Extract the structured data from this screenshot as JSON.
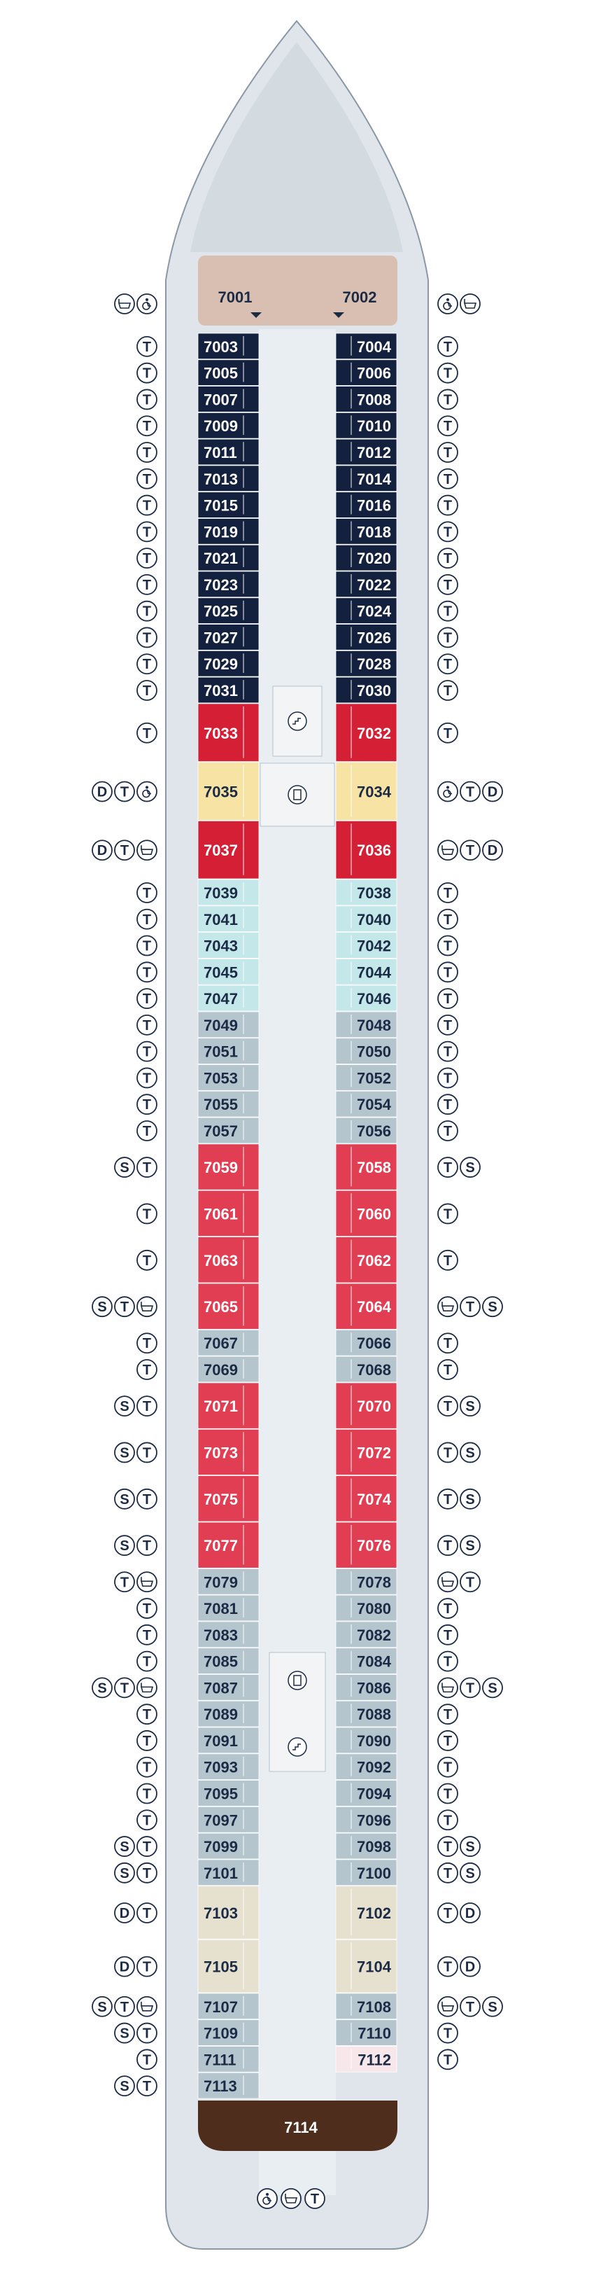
{
  "colors": {
    "hull": "#d5dde3",
    "hull_stroke": "#8a98a6",
    "corridor": "#e9eef2",
    "navy": "#13213f",
    "red": "#d51f35",
    "pink": "#e23e53",
    "yellow": "#f7e3a3",
    "aqua": "#c4e7ea",
    "gray": "#b5c5ce",
    "beige": "#e6e0cf",
    "rose": "#f6dede",
    "tan": "#d9bfb1",
    "brown": "#4e2d1c",
    "lightpink": "#f7e7ea"
  },
  "legend_icons": {
    "T": "twin-beds-icon",
    "D": "double-bed-icon",
    "S": "sofa-bed-icon",
    "bath": "bathtub-icon",
    "access": "accessible-icon"
  },
  "cabins_left": [
    {
      "num": "7003",
      "color": "navy"
    },
    {
      "num": "7005",
      "color": "navy"
    },
    {
      "num": "7007",
      "color": "navy"
    },
    {
      "num": "7009",
      "color": "navy"
    },
    {
      "num": "7011",
      "color": "navy"
    },
    {
      "num": "7013",
      "color": "navy"
    },
    {
      "num": "7015",
      "color": "navy"
    },
    {
      "num": "7019",
      "color": "navy"
    },
    {
      "num": "7021",
      "color": "navy"
    },
    {
      "num": "7023",
      "color": "navy"
    },
    {
      "num": "7025",
      "color": "navy"
    },
    {
      "num": "7027",
      "color": "navy"
    },
    {
      "num": "7029",
      "color": "navy"
    },
    {
      "num": "7031",
      "color": "navy"
    },
    {
      "num": "7033",
      "color": "red"
    },
    {
      "num": "7035",
      "color": "yellow"
    },
    {
      "num": "7037",
      "color": "red"
    },
    {
      "num": "7039",
      "color": "aqua"
    },
    {
      "num": "7041",
      "color": "aqua"
    },
    {
      "num": "7043",
      "color": "aqua"
    },
    {
      "num": "7045",
      "color": "aqua"
    },
    {
      "num": "7047",
      "color": "aqua"
    },
    {
      "num": "7049",
      "color": "gray"
    },
    {
      "num": "7051",
      "color": "gray"
    },
    {
      "num": "7053",
      "color": "gray"
    },
    {
      "num": "7055",
      "color": "gray"
    },
    {
      "num": "7057",
      "color": "gray"
    },
    {
      "num": "7059",
      "color": "pink"
    },
    {
      "num": "7061",
      "color": "pink"
    },
    {
      "num": "7063",
      "color": "pink"
    },
    {
      "num": "7065",
      "color": "pink"
    },
    {
      "num": "7067",
      "color": "gray"
    },
    {
      "num": "7069",
      "color": "gray"
    },
    {
      "num": "7071",
      "color": "pink"
    },
    {
      "num": "7073",
      "color": "pink"
    },
    {
      "num": "7075",
      "color": "pink"
    },
    {
      "num": "7077",
      "color": "pink"
    },
    {
      "num": "7079",
      "color": "gray"
    },
    {
      "num": "7081",
      "color": "gray"
    },
    {
      "num": "7083",
      "color": "gray"
    },
    {
      "num": "7085",
      "color": "gray"
    },
    {
      "num": "7087",
      "color": "gray"
    },
    {
      "num": "7089",
      "color": "gray"
    },
    {
      "num": "7091",
      "color": "gray"
    },
    {
      "num": "7093",
      "color": "gray"
    },
    {
      "num": "7095",
      "color": "gray"
    },
    {
      "num": "7097",
      "color": "gray"
    },
    {
      "num": "7099",
      "color": "gray"
    },
    {
      "num": "7101",
      "color": "gray"
    },
    {
      "num": "7103",
      "color": "beige"
    },
    {
      "num": "7105",
      "color": "beige"
    },
    {
      "num": "7107",
      "color": "gray"
    },
    {
      "num": "7109",
      "color": "gray"
    },
    {
      "num": "7111",
      "color": "gray"
    },
    {
      "num": "7113",
      "color": "gray"
    }
  ],
  "cabins_right": [
    {
      "num": "7004",
      "color": "navy"
    },
    {
      "num": "7006",
      "color": "navy"
    },
    {
      "num": "7008",
      "color": "navy"
    },
    {
      "num": "7010",
      "color": "navy"
    },
    {
      "num": "7012",
      "color": "navy"
    },
    {
      "num": "7014",
      "color": "navy"
    },
    {
      "num": "7016",
      "color": "navy"
    },
    {
      "num": "7018",
      "color": "navy"
    },
    {
      "num": "7020",
      "color": "navy"
    },
    {
      "num": "7022",
      "color": "navy"
    },
    {
      "num": "7024",
      "color": "navy"
    },
    {
      "num": "7026",
      "color": "navy"
    },
    {
      "num": "7028",
      "color": "navy"
    },
    {
      "num": "7030",
      "color": "navy"
    },
    {
      "num": "7032",
      "color": "red"
    },
    {
      "num": "7034",
      "color": "yellow"
    },
    {
      "num": "7036",
      "color": "red"
    },
    {
      "num": "7038",
      "color": "aqua"
    },
    {
      "num": "7040",
      "color": "aqua"
    },
    {
      "num": "7042",
      "color": "aqua"
    },
    {
      "num": "7044",
      "color": "aqua"
    },
    {
      "num": "7046",
      "color": "aqua"
    },
    {
      "num": "7048",
      "color": "gray"
    },
    {
      "num": "7050",
      "color": "gray"
    },
    {
      "num": "7052",
      "color": "gray"
    },
    {
      "num": "7054",
      "color": "gray"
    },
    {
      "num": "7056",
      "color": "gray"
    },
    {
      "num": "7058",
      "color": "pink"
    },
    {
      "num": "7060",
      "color": "pink"
    },
    {
      "num": "7062",
      "color": "pink"
    },
    {
      "num": "7064",
      "color": "pink"
    },
    {
      "num": "7066",
      "color": "gray"
    },
    {
      "num": "7068",
      "color": "gray"
    },
    {
      "num": "7070",
      "color": "pink"
    },
    {
      "num": "7072",
      "color": "pink"
    },
    {
      "num": "7074",
      "color": "pink"
    },
    {
      "num": "7076",
      "color": "pink"
    },
    {
      "num": "7078",
      "color": "gray"
    },
    {
      "num": "7080",
      "color": "gray"
    },
    {
      "num": "7082",
      "color": "gray"
    },
    {
      "num": "7084",
      "color": "gray"
    },
    {
      "num": "7086",
      "color": "gray"
    },
    {
      "num": "7088",
      "color": "gray"
    },
    {
      "num": "7090",
      "color": "gray"
    },
    {
      "num": "7092",
      "color": "gray"
    },
    {
      "num": "7094",
      "color": "gray"
    },
    {
      "num": "7096",
      "color": "gray"
    },
    {
      "num": "7098",
      "color": "gray"
    },
    {
      "num": "7100",
      "color": "gray"
    },
    {
      "num": "7102",
      "color": "beige"
    },
    {
      "num": "7104",
      "color": "beige"
    },
    {
      "num": "7108",
      "color": "gray"
    },
    {
      "num": "7110",
      "color": "gray"
    },
    {
      "num": "7112",
      "color": "lightpink"
    }
  ],
  "forward_cabins": [
    {
      "num": "7001"
    },
    {
      "num": "7002"
    }
  ],
  "aft_cabin": {
    "num": "7114"
  },
  "badges_left": [
    [
      "T"
    ],
    [
      "T"
    ],
    [
      "T"
    ],
    [
      "T"
    ],
    [
      "T"
    ],
    [
      "T"
    ],
    [
      "T"
    ],
    [
      "T"
    ],
    [
      "T"
    ],
    [
      "T"
    ],
    [
      "T"
    ],
    [
      "T"
    ],
    [
      "T"
    ],
    [
      "T"
    ],
    [
      "T"
    ],
    [
      "D",
      "T",
      "access"
    ],
    [
      "D",
      "T",
      "bath"
    ],
    [
      "T"
    ],
    [
      "T"
    ],
    [
      "T"
    ],
    [
      "T"
    ],
    [
      "T"
    ],
    [
      "T"
    ],
    [
      "T"
    ],
    [
      "T"
    ],
    [
      "T"
    ],
    [
      "T"
    ],
    [
      "S",
      "T"
    ],
    [
      "T"
    ],
    [
      "T"
    ],
    [
      "S",
      "T",
      "bath"
    ],
    [
      "T"
    ],
    [
      "T"
    ],
    [
      "S",
      "T"
    ],
    [
      "S",
      "T"
    ],
    [
      "S",
      "T"
    ],
    [
      "S",
      "T"
    ],
    [
      "T",
      "bath"
    ],
    [
      "T"
    ],
    [
      "T"
    ],
    [
      "T"
    ],
    [
      "S",
      "T",
      "bath"
    ],
    [
      "T"
    ],
    [
      "T"
    ],
    [
      "T"
    ],
    [
      "T"
    ],
    [
      "T"
    ],
    [
      "S",
      "T"
    ],
    [
      "S",
      "T"
    ],
    [
      "D",
      "T"
    ],
    [
      "D",
      "T"
    ],
    [
      "S",
      "T",
      "bath"
    ],
    [
      "S",
      "T"
    ],
    [
      "T"
    ],
    [
      "S",
      "T"
    ]
  ],
  "badges_right": [
    [
      "T"
    ],
    [
      "T"
    ],
    [
      "T"
    ],
    [
      "T"
    ],
    [
      "T"
    ],
    [
      "T"
    ],
    [
      "T"
    ],
    [
      "T"
    ],
    [
      "T"
    ],
    [
      "T"
    ],
    [
      "T"
    ],
    [
      "T"
    ],
    [
      "T"
    ],
    [
      "T"
    ],
    [
      "T"
    ],
    [
      "access",
      "T",
      "D"
    ],
    [
      "bath",
      "T",
      "D"
    ],
    [
      "T"
    ],
    [
      "T"
    ],
    [
      "T"
    ],
    [
      "T"
    ],
    [
      "T"
    ],
    [
      "T"
    ],
    [
      "T"
    ],
    [
      "T"
    ],
    [
      "T"
    ],
    [
      "T"
    ],
    [
      "T",
      "S"
    ],
    [
      "T"
    ],
    [
      "T"
    ],
    [
      "bath",
      "T",
      "S"
    ],
    [
      "T"
    ],
    [
      "T"
    ],
    [
      "T",
      "S"
    ],
    [
      "T",
      "S"
    ],
    [
      "T",
      "S"
    ],
    [
      "T",
      "S"
    ],
    [
      "bath",
      "T"
    ],
    [
      "T"
    ],
    [
      "T"
    ],
    [
      "T"
    ],
    [
      "bath",
      "T",
      "S"
    ],
    [
      "T"
    ],
    [
      "T"
    ],
    [
      "T"
    ],
    [
      "T"
    ],
    [
      "T"
    ],
    [
      "T",
      "S"
    ],
    [
      "T",
      "S"
    ],
    [
      "T",
      "D"
    ],
    [
      "T",
      "D"
    ],
    [
      "bath",
      "T",
      "S"
    ],
    [
      "T"
    ],
    [
      "T"
    ]
  ],
  "forward_badges_left": [
    "bath",
    "access"
  ],
  "forward_badges_right": [
    "access",
    "bath"
  ],
  "bottom_badges": [
    "access",
    "bath",
    "T"
  ]
}
